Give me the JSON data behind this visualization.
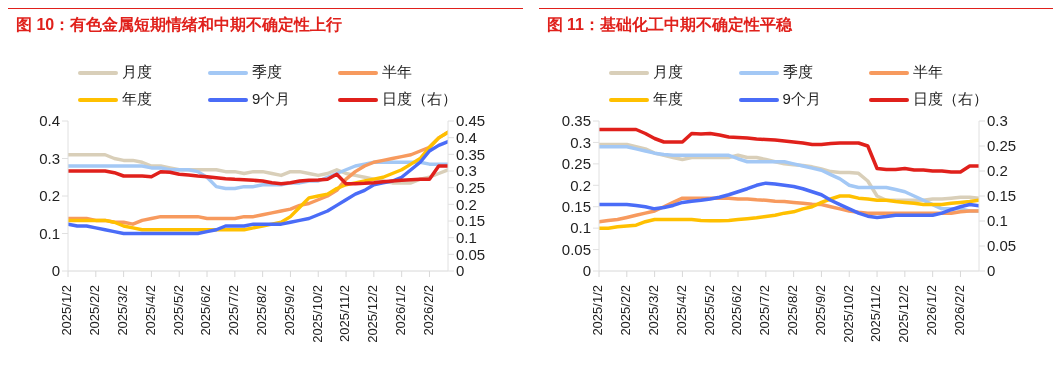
{
  "chart_data": [
    {
      "type": "line",
      "title": "图 10：有色金属短期情绪和中期不确定性上行",
      "legend": "top",
      "categories": [
        "2025/1/2",
        null,
        null,
        "2025/2/2",
        null,
        null,
        "2025/3/2",
        null,
        null,
        "2025/4/2",
        null,
        null,
        "2025/5/2",
        null,
        null,
        "2025/6/2",
        null,
        null,
        "2025/7/2",
        null,
        null,
        "2025/8/2",
        null,
        null,
        "2025/9/2",
        null,
        null,
        "2025/10/2",
        null,
        null,
        "2025/11/2",
        null,
        null,
        "2025/12/2",
        null,
        null,
        "2026/1/2",
        null,
        null,
        "2026/2/2",
        null,
        null
      ],
      "ylim": [
        0,
        0.4
      ],
      "yticks": [
        0,
        0.1,
        0.2,
        0.3,
        0.4
      ],
      "y2lim": [
        0,
        0.45
      ],
      "y2ticks": [
        0,
        0.05,
        0.1,
        0.15,
        0.2,
        0.25,
        0.3,
        0.35,
        0.4,
        0.45
      ],
      "series": [
        {
          "name": "月度",
          "color": "#d9cfb9",
          "values": [
            0.31,
            0.31,
            0.31,
            0.31,
            0.31,
            0.3,
            0.295,
            0.295,
            0.29,
            0.28,
            0.28,
            0.275,
            0.27,
            0.27,
            0.27,
            0.27,
            0.27,
            0.265,
            0.265,
            0.26,
            0.265,
            0.265,
            0.26,
            0.255,
            0.265,
            0.265,
            0.26,
            0.255,
            0.26,
            0.27,
            0.26,
            0.255,
            0.25,
            0.245,
            0.24,
            0.235,
            0.235,
            0.235,
            0.245,
            0.25,
            0.26,
            0.27
          ]
        },
        {
          "name": "季度",
          "color": "#a3c8f5",
          "values": [
            0.28,
            0.28,
            0.28,
            0.28,
            0.28,
            0.28,
            0.28,
            0.28,
            0.28,
            0.275,
            0.275,
            0.27,
            0.27,
            0.27,
            0.265,
            0.25,
            0.225,
            0.22,
            0.22,
            0.225,
            0.225,
            0.23,
            0.23,
            0.23,
            0.235,
            0.235,
            0.24,
            0.24,
            0.25,
            0.26,
            0.27,
            0.28,
            0.285,
            0.29,
            0.29,
            0.29,
            0.29,
            0.29,
            0.29,
            0.285,
            0.285,
            0.285
          ]
        },
        {
          "name": "半年",
          "color": "#f79a5e",
          "values": [
            0.14,
            0.14,
            0.14,
            0.135,
            0.135,
            0.13,
            0.13,
            0.125,
            0.135,
            0.14,
            0.145,
            0.145,
            0.145,
            0.145,
            0.145,
            0.14,
            0.14,
            0.14,
            0.14,
            0.145,
            0.145,
            0.15,
            0.155,
            0.16,
            0.165,
            0.175,
            0.18,
            0.19,
            0.2,
            0.215,
            0.245,
            0.265,
            0.28,
            0.29,
            0.295,
            0.3,
            0.305,
            0.31,
            0.32,
            0.33,
            0.355,
            0.37
          ]
        },
        {
          "name": "年度",
          "color": "#ffc000",
          "values": [
            0.135,
            0.135,
            0.135,
            0.135,
            0.135,
            0.13,
            0.12,
            0.115,
            0.11,
            0.11,
            0.11,
            0.11,
            0.11,
            0.11,
            0.11,
            0.11,
            0.11,
            0.11,
            0.11,
            0.11,
            0.115,
            0.12,
            0.125,
            0.13,
            0.145,
            0.17,
            0.195,
            0.2,
            0.205,
            0.22,
            0.23,
            0.235,
            0.24,
            0.245,
            0.25,
            0.26,
            0.27,
            0.285,
            0.3,
            0.33,
            0.355,
            0.37
          ]
        },
        {
          "name": "9个月",
          "color": "#4a6cf7",
          "values": [
            0.125,
            0.12,
            0.12,
            0.115,
            0.11,
            0.105,
            0.1,
            0.1,
            0.1,
            0.1,
            0.1,
            0.1,
            0.1,
            0.1,
            0.1,
            0.105,
            0.11,
            0.12,
            0.12,
            0.12,
            0.125,
            0.125,
            0.125,
            0.125,
            0.13,
            0.135,
            0.14,
            0.15,
            0.16,
            0.175,
            0.19,
            0.205,
            0.215,
            0.23,
            0.235,
            0.24,
            0.25,
            0.27,
            0.29,
            0.32,
            0.335,
            0.345
          ]
        },
        {
          "name": "日度（右）",
          "color": "#e0201b",
          "axis": "y2",
          "values": [
            0.3,
            0.3,
            0.3,
            0.3,
            0.3,
            0.295,
            0.285,
            0.285,
            0.285,
            0.283,
            0.298,
            0.296,
            0.29,
            0.288,
            0.285,
            0.283,
            0.28,
            0.277,
            0.275,
            0.274,
            0.272,
            0.27,
            0.265,
            0.262,
            0.265,
            0.27,
            0.272,
            0.273,
            0.275,
            0.29,
            0.262,
            0.262,
            0.263,
            0.265,
            0.268,
            0.27,
            0.272,
            0.274,
            0.275,
            0.275,
            0.315,
            0.315
          ]
        }
      ]
    },
    {
      "type": "line",
      "title": "图 11：基础化工中期不确定性平稳",
      "legend": "top",
      "categories": [
        "2025/1/2",
        null,
        null,
        "2025/2/2",
        null,
        null,
        "2025/3/2",
        null,
        null,
        "2025/4/2",
        null,
        null,
        "2025/5/2",
        null,
        null,
        "2025/6/2",
        null,
        null,
        "2025/7/2",
        null,
        null,
        "2025/8/2",
        null,
        null,
        "2025/9/2",
        null,
        null,
        "2025/10/2",
        null,
        null,
        "2025/11/2",
        null,
        null,
        "2025/12/2",
        null,
        null,
        "2026/1/2",
        null,
        null,
        "2026/2/2",
        null,
        null
      ],
      "ylim": [
        0,
        0.35
      ],
      "yticks": [
        0,
        0.05,
        0.1,
        0.15,
        0.2,
        0.25,
        0.3,
        0.35
      ],
      "y2lim": [
        0,
        0.3
      ],
      "y2ticks": [
        0,
        0.05,
        0.1,
        0.15,
        0.2,
        0.25,
        0.3
      ],
      "series": [
        {
          "name": "月度",
          "color": "#d9cfb9",
          "values": [
            0.295,
            0.295,
            0.295,
            0.295,
            0.29,
            0.285,
            0.275,
            0.27,
            0.265,
            0.26,
            0.265,
            0.265,
            0.265,
            0.265,
            0.265,
            0.27,
            0.265,
            0.265,
            0.26,
            0.255,
            0.25,
            0.248,
            0.246,
            0.243,
            0.238,
            0.232,
            0.23,
            0.23,
            0.228,
            0.21,
            0.175,
            0.165,
            0.165,
            0.165,
            0.165,
            0.165,
            0.168,
            0.168,
            0.17,
            0.172,
            0.172,
            0.17
          ]
        },
        {
          "name": "季度",
          "color": "#a3c8f5",
          "values": [
            0.29,
            0.29,
            0.29,
            0.29,
            0.285,
            0.28,
            0.275,
            0.272,
            0.27,
            0.27,
            0.27,
            0.27,
            0.27,
            0.27,
            0.27,
            0.262,
            0.255,
            0.255,
            0.255,
            0.255,
            0.255,
            0.25,
            0.245,
            0.24,
            0.235,
            0.225,
            0.215,
            0.2,
            0.195,
            0.195,
            0.195,
            0.195,
            0.19,
            0.185,
            0.175,
            0.165,
            0.155,
            0.145,
            0.145,
            0.145,
            0.14,
            0.14
          ]
        },
        {
          "name": "半年",
          "color": "#f79a5e",
          "values": [
            0.115,
            0.118,
            0.12,
            0.125,
            0.13,
            0.135,
            0.14,
            0.15,
            0.16,
            0.17,
            0.17,
            0.17,
            0.17,
            0.17,
            0.17,
            0.168,
            0.168,
            0.166,
            0.165,
            0.163,
            0.162,
            0.16,
            0.158,
            0.156,
            0.155,
            0.15,
            0.145,
            0.14,
            0.137,
            0.135,
            0.135,
            0.135,
            0.135,
            0.135,
            0.135,
            0.135,
            0.135,
            0.135,
            0.135,
            0.138,
            0.14,
            0.14
          ]
        },
        {
          "name": "年度",
          "color": "#ffc000",
          "values": [
            0.1,
            0.1,
            0.103,
            0.105,
            0.107,
            0.115,
            0.12,
            0.12,
            0.12,
            0.12,
            0.12,
            0.118,
            0.117,
            0.117,
            0.118,
            0.12,
            0.122,
            0.124,
            0.127,
            0.13,
            0.135,
            0.138,
            0.145,
            0.15,
            0.16,
            0.168,
            0.175,
            0.175,
            0.17,
            0.168,
            0.165,
            0.165,
            0.162,
            0.16,
            0.158,
            0.155,
            0.155,
            0.155,
            0.158,
            0.16,
            0.162,
            0.165
          ]
        },
        {
          "name": "9个月",
          "color": "#4a6cf7",
          "values": [
            0.155,
            0.155,
            0.155,
            0.155,
            0.153,
            0.15,
            0.145,
            0.148,
            0.153,
            0.16,
            0.163,
            0.165,
            0.168,
            0.172,
            0.178,
            0.185,
            0.192,
            0.2,
            0.205,
            0.203,
            0.2,
            0.197,
            0.192,
            0.185,
            0.178,
            0.165,
            0.155,
            0.145,
            0.135,
            0.128,
            0.125,
            0.127,
            0.13,
            0.13,
            0.13,
            0.13,
            0.13,
            0.135,
            0.143,
            0.15,
            0.155,
            0.152
          ]
        },
        {
          "name": "日度（右）",
          "color": "#e0201b",
          "axis": "y2",
          "values": [
            0.283,
            0.283,
            0.283,
            0.283,
            0.283,
            0.275,
            0.265,
            0.258,
            0.258,
            0.258,
            0.275,
            0.274,
            0.275,
            0.272,
            0.268,
            0.267,
            0.266,
            0.264,
            0.263,
            0.262,
            0.26,
            0.258,
            0.256,
            0.253,
            0.253,
            0.255,
            0.256,
            0.256,
            0.256,
            0.25,
            0.205,
            0.203,
            0.203,
            0.205,
            0.202,
            0.202,
            0.2,
            0.2,
            0.198,
            0.198,
            0.21,
            0.21
          ]
        }
      ]
    }
  ]
}
